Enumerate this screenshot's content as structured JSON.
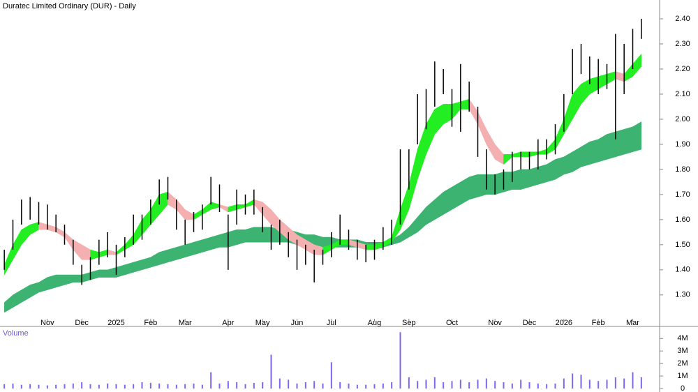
{
  "chart_data": [
    {
      "type": "range-bar",
      "title": "Duratec Limited Ordinary (DUR) - Daily",
      "categories": [
        null,
        null,
        null,
        null,
        null,
        "Nov",
        null,
        null,
        null,
        "Dec",
        null,
        null,
        null,
        "2025",
        null,
        null,
        null,
        "Feb",
        null,
        null,
        null,
        "Mar",
        null,
        null,
        null,
        null,
        "Apr",
        null,
        null,
        null,
        "May",
        null,
        null,
        null,
        "Jun",
        null,
        null,
        null,
        "Jul",
        null,
        null,
        null,
        null,
        "Aug",
        null,
        null,
        null,
        "Sep",
        null,
        null,
        null,
        null,
        "Oct",
        null,
        null,
        null,
        null,
        "Nov",
        null,
        null,
        null,
        "Dec",
        null,
        null,
        null,
        "2026",
        null,
        null,
        null,
        "Feb",
        null,
        null,
        null,
        "Mar",
        null
      ],
      "high": [
        1.48,
        1.6,
        1.68,
        1.69,
        1.67,
        1.66,
        1.62,
        1.58,
        1.52,
        1.42,
        1.45,
        1.52,
        1.55,
        1.5,
        1.53,
        1.62,
        1.62,
        1.68,
        1.76,
        1.77,
        1.68,
        1.6,
        1.63,
        1.66,
        1.77,
        1.74,
        1.62,
        1.72,
        1.7,
        1.72,
        1.65,
        1.58,
        1.6,
        1.55,
        1.52,
        1.5,
        1.48,
        1.48,
        1.55,
        1.62,
        1.56,
        1.52,
        1.5,
        1.52,
        1.57,
        1.6,
        1.88,
        1.88,
        2.1,
        2.12,
        2.23,
        2.2,
        2.12,
        2.22,
        2.15,
        2.05,
        1.88,
        1.78,
        1.8,
        1.87,
        1.87,
        1.87,
        1.92,
        1.92,
        1.98,
        2.1,
        2.28,
        2.3,
        2.25,
        2.24,
        2.22,
        2.34,
        2.3,
        2.36,
        2.4
      ],
      "low": [
        1.4,
        1.48,
        1.58,
        1.6,
        1.58,
        1.56,
        1.55,
        1.5,
        1.42,
        1.34,
        1.36,
        1.42,
        1.45,
        1.38,
        1.45,
        1.5,
        1.52,
        1.58,
        1.66,
        1.68,
        1.56,
        1.5,
        1.55,
        1.56,
        1.66,
        1.63,
        1.4,
        1.58,
        1.62,
        1.62,
        1.55,
        1.48,
        1.5,
        1.45,
        1.4,
        1.42,
        1.35,
        1.42,
        1.45,
        1.5,
        1.48,
        1.44,
        1.43,
        1.44,
        1.48,
        1.5,
        1.58,
        1.72,
        1.9,
        1.96,
        2.05,
        2.1,
        1.97,
        1.95,
        2.03,
        1.85,
        1.72,
        1.7,
        1.72,
        1.75,
        1.8,
        1.8,
        1.8,
        1.84,
        1.86,
        1.95,
        2.1,
        2.18,
        2.14,
        2.1,
        2.12,
        1.92,
        2.1,
        2.2,
        2.32
      ],
      "bar_color": "#000000",
      "fast_band": {
        "rising_color": "#22ee22",
        "falling_color": "#f4b0b0",
        "lower": [
          1.38,
          1.44,
          1.5,
          1.54,
          1.56,
          1.56,
          1.55,
          1.53,
          1.48,
          1.44,
          1.44,
          1.45,
          1.46,
          1.46,
          1.48,
          1.5,
          1.54,
          1.58,
          1.62,
          1.66,
          1.64,
          1.6,
          1.6,
          1.62,
          1.64,
          1.65,
          1.63,
          1.64,
          1.65,
          1.66,
          1.62,
          1.58,
          1.55,
          1.52,
          1.5,
          1.48,
          1.46,
          1.46,
          1.48,
          1.5,
          1.5,
          1.49,
          1.48,
          1.48,
          1.49,
          1.51,
          1.56,
          1.64,
          1.76,
          1.86,
          1.94,
          1.98,
          2.0,
          2.04,
          2.04,
          1.98,
          1.9,
          1.84,
          1.82,
          1.85,
          1.85,
          1.85,
          1.86,
          1.86,
          1.88,
          1.94,
          2.0,
          2.06,
          2.1,
          2.12,
          2.14,
          2.16,
          2.15,
          2.17,
          2.21
        ],
        "upper": [
          1.42,
          1.5,
          1.56,
          1.58,
          1.59,
          1.58,
          1.57,
          1.55,
          1.52,
          1.5,
          1.48,
          1.47,
          1.48,
          1.47,
          1.5,
          1.54,
          1.6,
          1.64,
          1.7,
          1.71,
          1.68,
          1.64,
          1.62,
          1.64,
          1.67,
          1.66,
          1.65,
          1.66,
          1.66,
          1.68,
          1.67,
          1.64,
          1.6,
          1.57,
          1.54,
          1.52,
          1.5,
          1.49,
          1.5,
          1.52,
          1.52,
          1.51,
          1.5,
          1.5,
          1.51,
          1.53,
          1.64,
          1.74,
          1.88,
          1.98,
          2.04,
          2.06,
          2.06,
          2.07,
          2.08,
          2.03,
          1.96,
          1.9,
          1.86,
          1.86,
          1.87,
          1.87,
          1.87,
          1.88,
          1.92,
          2.0,
          2.1,
          2.14,
          2.16,
          2.17,
          2.18,
          2.19,
          2.18,
          2.22,
          2.26
        ]
      },
      "slow_band": {
        "color": "#3cb371",
        "lower": [
          1.23,
          1.25,
          1.27,
          1.29,
          1.31,
          1.32,
          1.33,
          1.34,
          1.35,
          1.35,
          1.36,
          1.37,
          1.37,
          1.37,
          1.38,
          1.39,
          1.4,
          1.41,
          1.42,
          1.43,
          1.44,
          1.45,
          1.46,
          1.47,
          1.48,
          1.49,
          1.49,
          1.5,
          1.51,
          1.51,
          1.51,
          1.51,
          1.51,
          1.51,
          1.5,
          1.5,
          1.49,
          1.49,
          1.49,
          1.49,
          1.49,
          1.49,
          1.49,
          1.49,
          1.49,
          1.5,
          1.51,
          1.53,
          1.55,
          1.58,
          1.6,
          1.62,
          1.64,
          1.66,
          1.68,
          1.69,
          1.7,
          1.7,
          1.71,
          1.72,
          1.72,
          1.73,
          1.74,
          1.75,
          1.76,
          1.78,
          1.79,
          1.81,
          1.82,
          1.83,
          1.84,
          1.85,
          1.86,
          1.87,
          1.88
        ],
        "upper": [
          1.27,
          1.3,
          1.32,
          1.34,
          1.35,
          1.37,
          1.38,
          1.38,
          1.38,
          1.38,
          1.39,
          1.4,
          1.4,
          1.41,
          1.42,
          1.43,
          1.44,
          1.45,
          1.47,
          1.48,
          1.49,
          1.5,
          1.51,
          1.52,
          1.53,
          1.54,
          1.55,
          1.56,
          1.56,
          1.57,
          1.57,
          1.57,
          1.56,
          1.56,
          1.55,
          1.54,
          1.54,
          1.53,
          1.53,
          1.52,
          1.52,
          1.52,
          1.51,
          1.51,
          1.51,
          1.52,
          1.54,
          1.57,
          1.61,
          1.65,
          1.68,
          1.71,
          1.73,
          1.75,
          1.77,
          1.78,
          1.78,
          1.78,
          1.79,
          1.79,
          1.8,
          1.8,
          1.81,
          1.82,
          1.84,
          1.85,
          1.87,
          1.89,
          1.91,
          1.92,
          1.94,
          1.95,
          1.96,
          1.97,
          1.99
        ]
      },
      "ylim": [
        1.205,
        2.475
      ],
      "yticks": [
        {
          "value": 2.4,
          "label": "2.40"
        },
        {
          "value": 2.3,
          "label": "2.30"
        },
        {
          "value": 2.2,
          "label": "2.20"
        },
        {
          "value": 2.1,
          "label": "2.10"
        },
        {
          "value": 2.0,
          "label": "2.00"
        },
        {
          "value": 1.9,
          "label": "1.90"
        },
        {
          "value": 1.8,
          "label": "1.80"
        },
        {
          "value": 1.7,
          "label": "1.70"
        },
        {
          "value": 1.6,
          "label": "1.60"
        },
        {
          "value": 1.5,
          "label": "1.50"
        },
        {
          "value": 1.4,
          "label": "1.40"
        },
        {
          "value": 1.3,
          "label": "1.30"
        }
      ]
    },
    {
      "type": "bar",
      "title": "Volume",
      "color": "#7b68ee",
      "values": [
        350000,
        400000,
        300000,
        350000,
        300000,
        250000,
        300000,
        350000,
        400000,
        500000,
        350000,
        300000,
        400000,
        350000,
        300000,
        350000,
        500000,
        450000,
        400000,
        350000,
        300000,
        350000,
        400000,
        300000,
        1300000,
        400000,
        600000,
        500000,
        350000,
        450000,
        500000,
        2700000,
        800000,
        700000,
        400000,
        500000,
        600000,
        400000,
        2100000,
        500000,
        400000,
        300000,
        300000,
        350000,
        400000,
        500000,
        4500000,
        900000,
        600000,
        700000,
        900000,
        500000,
        600000,
        700000,
        500000,
        700000,
        800000,
        600000,
        500000,
        400000,
        700000,
        500000,
        400000,
        350000,
        400000,
        800000,
        1200000,
        1100000,
        700000,
        600000,
        700000,
        900000,
        800000,
        1300000,
        900000
      ],
      "ylim": [
        0,
        4850000
      ],
      "yticks": [
        {
          "value": 4000000,
          "label": "4M"
        },
        {
          "value": 3000000,
          "label": "3M"
        },
        {
          "value": 2000000,
          "label": "2M"
        },
        {
          "value": 1000000,
          "label": "1M"
        },
        0
      ]
    }
  ]
}
